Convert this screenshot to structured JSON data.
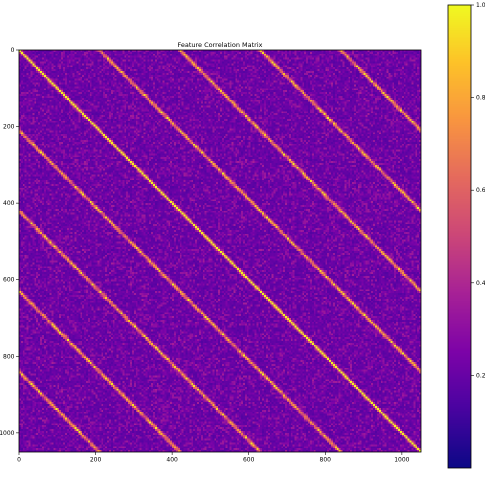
{
  "chart_data": {
    "type": "heatmap",
    "title": "Feature Correlation Matrix",
    "xlabel": "",
    "ylabel": "",
    "matrix_size": 1050,
    "xlim": [
      0,
      1050
    ],
    "ylim": [
      1050,
      0
    ],
    "x_ticks": [
      0,
      200,
      400,
      600,
      800,
      1000
    ],
    "x_tick_labels": [
      "0",
      "200",
      "400",
      "600",
      "800",
      "1000"
    ],
    "y_ticks": [
      0,
      200,
      400,
      600,
      800,
      1000
    ],
    "y_tick_labels": [
      "0",
      "200",
      "400",
      "600",
      "800",
      "1000"
    ],
    "colormap": "plasma",
    "value_range": [
      0,
      1
    ],
    "diagonal_value": 1.0,
    "background_value_typical": 0.15,
    "periodic_offsets": [
      -840,
      -630,
      -420,
      -210,
      0,
      210,
      420,
      630,
      840
    ],
    "colorbar": {
      "ticks": [
        0.2,
        0.4,
        0.6,
        0.8,
        1.0
      ],
      "tick_labels": [
        "0.2",
        "0.4",
        "0.6",
        "0.8",
        "1.0"
      ],
      "range": [
        0.0,
        1.0
      ]
    },
    "grid": false
  }
}
